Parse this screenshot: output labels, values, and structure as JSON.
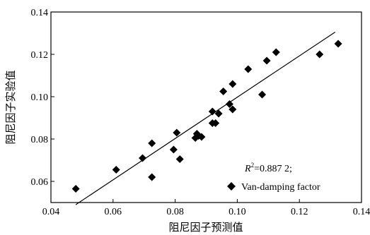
{
  "chart_data": {
    "type": "scatter",
    "title": "",
    "xlabel": "阻尼因子预测值",
    "ylabel": "阻尼因子实验值",
    "xlim": [
      0.04,
      0.14
    ],
    "ylim": [
      0.05,
      0.14
    ],
    "x_ticks": [
      0.04,
      0.06,
      0.08,
      0.1,
      0.12,
      0.14
    ],
    "y_ticks": [
      0.06,
      0.08,
      0.1,
      0.12,
      0.14
    ],
    "x_tick_labels": [
      "0.04",
      "0.06",
      "0.08",
      "0.10",
      "0.12",
      "0.14"
    ],
    "y_tick_labels": [
      "0.06",
      "0.08",
      "0.10",
      "0.12",
      "0.14"
    ],
    "grid": false,
    "legend_position": "bottom-right",
    "annotation": {
      "r_symbol": "R",
      "r_superscript": "2",
      "r_value_text": "=0.887 2;"
    },
    "series": [
      {
        "name": "Van-damping factor",
        "marker": "diamond",
        "color": "#000000",
        "points": [
          {
            "x": 0.048,
            "y": 0.0565
          },
          {
            "x": 0.061,
            "y": 0.0655
          },
          {
            "x": 0.0695,
            "y": 0.071
          },
          {
            "x": 0.0725,
            "y": 0.078
          },
          {
            "x": 0.0725,
            "y": 0.062
          },
          {
            "x": 0.0795,
            "y": 0.075
          },
          {
            "x": 0.0805,
            "y": 0.083
          },
          {
            "x": 0.0815,
            "y": 0.0705
          },
          {
            "x": 0.0865,
            "y": 0.0805
          },
          {
            "x": 0.087,
            "y": 0.0825
          },
          {
            "x": 0.0875,
            "y": 0.0815
          },
          {
            "x": 0.0885,
            "y": 0.081
          },
          {
            "x": 0.092,
            "y": 0.093
          },
          {
            "x": 0.092,
            "y": 0.0875
          },
          {
            "x": 0.093,
            "y": 0.0875
          },
          {
            "x": 0.094,
            "y": 0.092
          },
          {
            "x": 0.0955,
            "y": 0.1025
          },
          {
            "x": 0.0975,
            "y": 0.0965
          },
          {
            "x": 0.0985,
            "y": 0.106
          },
          {
            "x": 0.0985,
            "y": 0.094
          },
          {
            "x": 0.1035,
            "y": 0.113
          },
          {
            "x": 0.108,
            "y": 0.101
          },
          {
            "x": 0.1095,
            "y": 0.117
          },
          {
            "x": 0.1125,
            "y": 0.121
          },
          {
            "x": 0.1265,
            "y": 0.12
          },
          {
            "x": 0.1325,
            "y": 0.125
          }
        ]
      }
    ],
    "fit_line": {
      "x": [
        0.048,
        0.1315
      ],
      "y": [
        0.049,
        0.1305
      ],
      "color": "#000000"
    }
  }
}
